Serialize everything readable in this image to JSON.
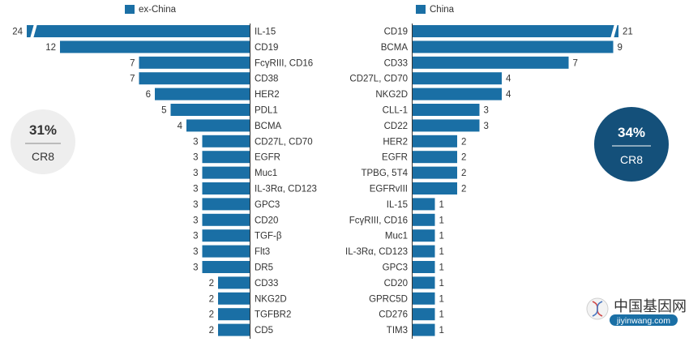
{
  "colors": {
    "bar": "#1a6fa5",
    "circle_left": "#eeeeee",
    "circle_right": "#14507a",
    "text": "#333333"
  },
  "watermark": {
    "text_cn": "中国基因网",
    "url": "jiyinwang.com"
  },
  "chart_data": [
    {
      "type": "bar",
      "orientation": "horizontal",
      "legend": "ex-China",
      "legend_position": "top",
      "highlight": {
        "percent": "31%",
        "label": "CR8"
      },
      "axis_break_on": [
        "IL-15"
      ],
      "categories": [
        "IL-15",
        "CD19",
        "FcγRIII, CD16",
        "CD38",
        "HER2",
        "PDL1",
        "BCMA",
        "CD27L, CD70",
        "EGFR",
        "Muc1",
        "IL-3Rα, CD123",
        "GPC3",
        "CD20",
        "TGF-β",
        "Flt3",
        "DR5",
        "CD33",
        "NKG2D",
        "TGFBR2",
        "CD5"
      ],
      "series": [
        {
          "name": "ex-China",
          "values": [
            24,
            12,
            7,
            7,
            6,
            5,
            4,
            3,
            3,
            3,
            3,
            3,
            3,
            3,
            3,
            3,
            2,
            2,
            2,
            2
          ]
        }
      ]
    },
    {
      "type": "bar",
      "orientation": "horizontal",
      "legend": "China",
      "legend_position": "top",
      "highlight": {
        "percent": "34%",
        "label": "CR8"
      },
      "axis_break_on": [
        "CD19"
      ],
      "categories": [
        "CD19",
        "BCMA",
        "CD33",
        "CD27L, CD70",
        "NKG2D",
        "CLL-1",
        "CD22",
        "HER2",
        "EGFR",
        "TPBG, 5T4",
        "EGFRvIII",
        "IL-15",
        "FcγRIII, CD16",
        "Muc1",
        "IL-3Rα, CD123",
        "GPC3",
        "CD20",
        "GPRC5D",
        "CD276",
        "TIM3"
      ],
      "series": [
        {
          "name": "China",
          "values": [
            21,
            9,
            7,
            4,
            4,
            3,
            3,
            2,
            2,
            2,
            2,
            1,
            1,
            1,
            1,
            1,
            1,
            1,
            1,
            1
          ]
        }
      ]
    }
  ]
}
